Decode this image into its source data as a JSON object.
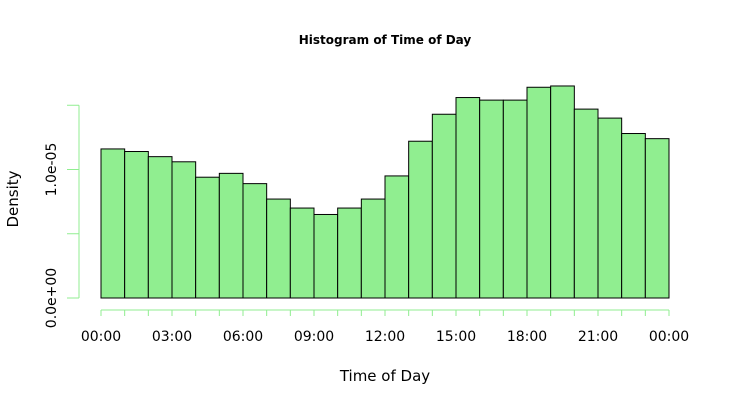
{
  "chart_data": {
    "type": "bar",
    "title": "Histogram of Time of Day",
    "xlabel": "Time of Day",
    "ylabel": "Density",
    "x_tick_labels": [
      "00:00",
      "03:00",
      "06:00",
      "09:00",
      "12:00",
      "15:00",
      "18:00",
      "21:00",
      "00:00"
    ],
    "y_tick_labels": [
      "0.0e+00",
      "1.0e-05"
    ],
    "y_tick_values": [
      0,
      5e-06,
      1e-05,
      1.5e-05
    ],
    "y_labeled_values": [
      0,
      1e-05
    ],
    "xlim_hours": [
      0,
      24
    ],
    "ylim": [
      0,
      1.5e-05
    ],
    "bin_width_hours": 1,
    "values": [
      1.16e-05,
      1.14e-05,
      1.1e-05,
      1.06e-05,
      9.4e-06,
      9.7e-06,
      8.9e-06,
      7.7e-06,
      7e-06,
      6.5e-06,
      7e-06,
      7.7e-06,
      9.5e-06,
      1.22e-05,
      1.43e-05,
      1.56e-05,
      1.54e-05,
      1.54e-05,
      1.64e-05,
      1.65e-05,
      1.47e-05,
      1.4e-05,
      1.28e-05,
      1.24e-05
    ],
    "colors": {
      "bar_fill": "#90ee90",
      "bar_stroke": "#000000",
      "axis": "#90ee90"
    },
    "grid": false,
    "legend": "none"
  }
}
